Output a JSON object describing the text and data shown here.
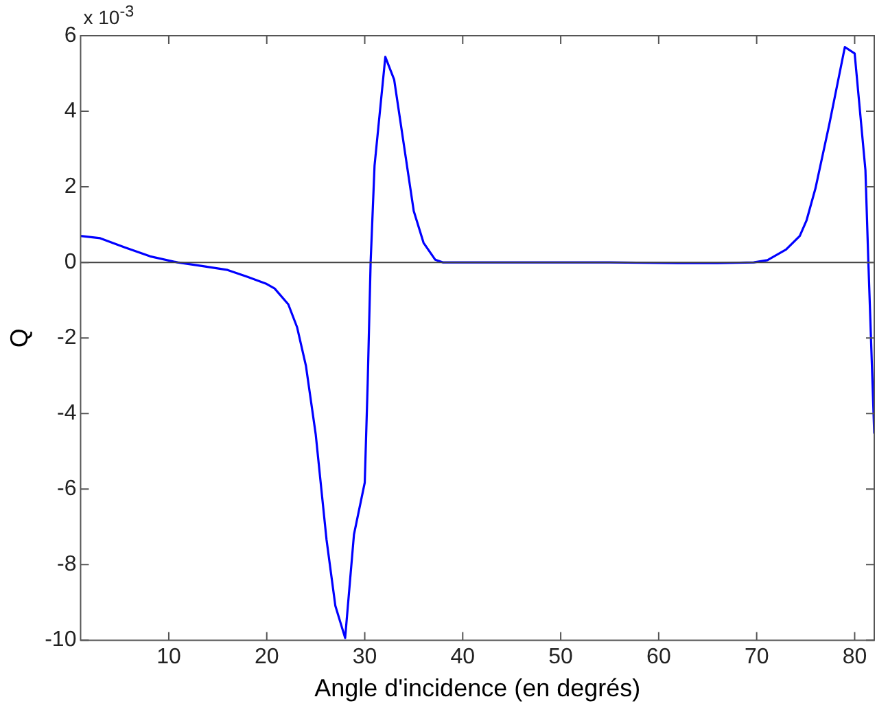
{
  "chart_data": {
    "type": "line",
    "xlabel": "Angle d'incidence (en degrés)",
    "ylabel": "Q",
    "annotations": [
      "x 10$^{-3}$"
    ],
    "x": [
      1,
      3,
      5.5,
      8.1,
      10.9,
      13.5,
      16,
      18,
      19.9,
      20.8,
      22.2,
      23.1,
      24,
      25,
      26.1,
      27,
      28,
      28.9,
      30,
      30.3,
      30.6,
      31,
      32.1,
      33,
      35,
      36,
      37.2,
      38,
      45,
      55,
      62,
      66,
      69.7,
      71.1,
      73,
      74.4,
      75.1,
      76,
      77.4,
      79,
      80,
      81.1,
      81.4,
      82
    ],
    "series": [
      {
        "color": "#0000ff",
        "values": [
          0.7,
          0.64,
          0.4,
          0.16,
          0,
          -0.1,
          -0.2,
          -0.38,
          -0.56,
          -0.69,
          -1.11,
          -1.72,
          -2.74,
          -4.56,
          -7.34,
          -9.09,
          -9.94,
          -7.2,
          -5.83,
          -3.2,
          0,
          2.56,
          5.44,
          4.84,
          1.36,
          0.52,
          0.07,
          0,
          0,
          0,
          -0.02,
          -0.02,
          0,
          0.06,
          0.34,
          0.7,
          1.12,
          1.96,
          3.64,
          5.7,
          5.53,
          2.44,
          0,
          -4.53
        ]
      }
    ],
    "xlim": [
      1,
      82
    ],
    "xticks": [
      10,
      20,
      30,
      40,
      50,
      60,
      70,
      80
    ],
    "ylim": [
      -10,
      6
    ],
    "yticks": [
      -10,
      -8,
      -6,
      -4,
      -2,
      0,
      2,
      4,
      6
    ],
    "ref_lines": [
      {
        "axis": "y",
        "value": 0,
        "color": "#404040"
      }
    ],
    "grid": false,
    "legend": false,
    "marker": "none",
    "line_style": "solid"
  }
}
